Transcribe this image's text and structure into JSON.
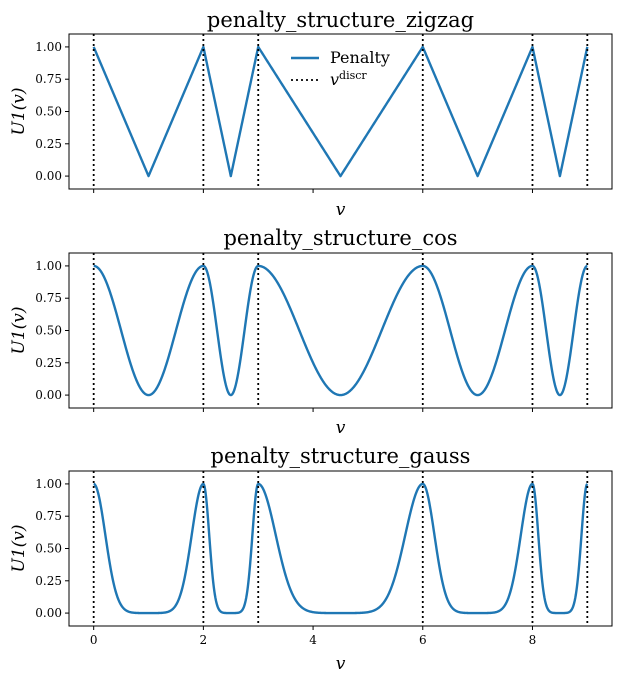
{
  "figure": {
    "series_color": "#1f77b4",
    "discr_color": "#000000"
  },
  "legend": {
    "items": [
      {
        "label": "Penalty",
        "style": "solid"
      },
      {
        "label": "v",
        "superscript": "discr",
        "style": "dotted"
      }
    ],
    "placement": "upper center (first subplot)"
  },
  "chart_data": [
    {
      "type": "line",
      "title": "penalty_structure_zigzag",
      "xlabel": "v",
      "ylabel": "U1(v)",
      "xlim": [
        -0.45,
        9.45
      ],
      "ylim": [
        -0.1,
        1.1
      ],
      "yticks": [
        "0.00",
        "0.25",
        "0.50",
        "0.75",
        "1.00"
      ],
      "xticks": [],
      "discretization_points": [
        0,
        2,
        3,
        6,
        8,
        9
      ],
      "series": [
        {
          "name": "Penalty",
          "shape": "zigzag",
          "x": [
            0,
            1,
            2,
            2.5,
            3,
            4.5,
            6,
            7,
            8,
            8.5,
            9
          ],
          "y": [
            1,
            0,
            1,
            0,
            1,
            0,
            1,
            0,
            1,
            0,
            1
          ]
        }
      ],
      "legend": true
    },
    {
      "type": "line",
      "title": "penalty_structure_cos",
      "xlabel": "v",
      "ylabel": "U1(v)",
      "xlim": [
        -0.45,
        9.45
      ],
      "ylim": [
        -0.1,
        1.1
      ],
      "yticks": [
        "0.00",
        "0.25",
        "0.50",
        "0.75",
        "1.00"
      ],
      "xticks": [],
      "discretization_points": [
        0,
        2,
        3,
        6,
        8,
        9
      ],
      "series": [
        {
          "name": "Penalty",
          "shape": "cos",
          "x": [
            0,
            1,
            2,
            2.5,
            3,
            4.5,
            6,
            7,
            8,
            8.5,
            9
          ],
          "y": [
            1,
            0,
            1,
            0,
            1,
            0,
            1,
            0,
            1,
            0,
            1
          ]
        }
      ],
      "legend": false
    },
    {
      "type": "line",
      "title": "penalty_structure_gauss",
      "xlabel": "v",
      "ylabel": "U1(v)",
      "xlim": [
        -0.45,
        9.45
      ],
      "ylim": [
        -0.1,
        1.1
      ],
      "yticks": [
        "0.00",
        "0.25",
        "0.50",
        "0.75",
        "1.00"
      ],
      "xticks": [
        "0",
        "2",
        "4",
        "6",
        "8"
      ],
      "discretization_points": [
        0,
        2,
        3,
        6,
        8,
        9
      ],
      "series": [
        {
          "name": "Penalty",
          "shape": "gauss",
          "x": [
            0,
            1,
            2,
            2.5,
            3,
            4.5,
            6,
            7,
            8,
            8.5,
            9
          ],
          "y": [
            1,
            0,
            1,
            0,
            1,
            0,
            1,
            0,
            1,
            0,
            1
          ]
        }
      ],
      "legend": false
    }
  ]
}
